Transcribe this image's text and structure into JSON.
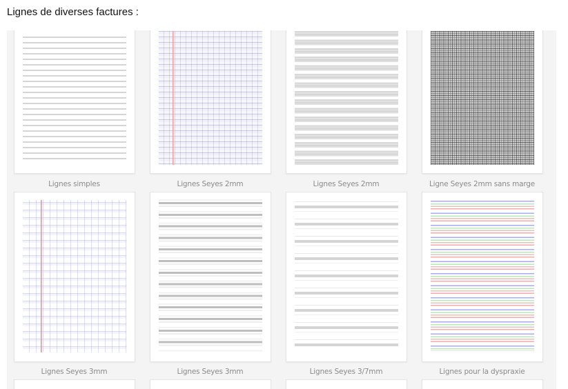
{
  "heading": "Lignes de diverses factures :",
  "items": [
    {
      "label": "Lignes simples",
      "pattern": "simple-lines"
    },
    {
      "label": "Lignes Seyes 2mm",
      "pattern": "seyes-2mm-margin"
    },
    {
      "label": "Lignes Seyes 2mm",
      "pattern": "seyes-2mm-gray"
    },
    {
      "label": "Ligne Seyes 2mm sans marge",
      "pattern": "grid-no-margin"
    },
    {
      "label": "Lignes Seyes 3mm",
      "pattern": "seyes-3mm-margin"
    },
    {
      "label": "Lignes Seyes 3mm",
      "pattern": "seyes-3mm-gray"
    },
    {
      "label": "Lignes Seyes 3/7mm",
      "pattern": "seyes-3-7mm"
    },
    {
      "label": "Lignes pour la dyspraxie",
      "pattern": "dyspraxia-colored",
      "colors": [
        "#aaaaf4",
        "#b8e8b8",
        "#dcc4bc",
        "#f8a8a8"
      ]
    }
  ],
  "colors": {
    "margin_red": "#f08a8a",
    "panel_bg": "#f4f4f4"
  }
}
